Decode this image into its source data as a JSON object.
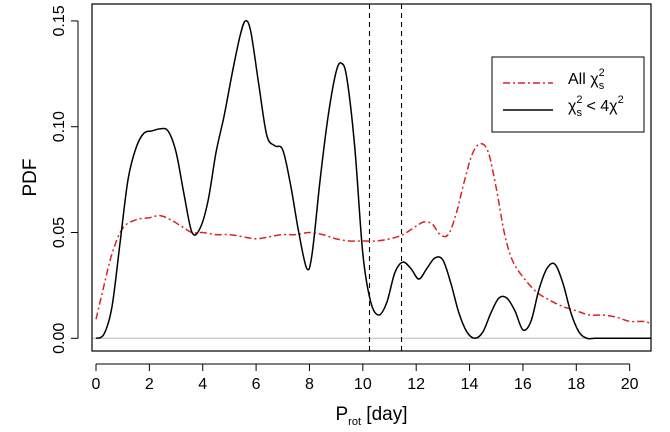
{
  "chart_data": {
    "type": "line",
    "xlabel": {
      "main": "P",
      "sub": "rot",
      "rest": " [day]"
    },
    "ylabel": "PDF",
    "xlim": [
      -0.15,
      20.8
    ],
    "ylim": [
      -0.006,
      0.158
    ],
    "x_ticks": [
      0,
      2,
      4,
      6,
      8,
      10,
      12,
      14,
      16,
      18,
      20
    ],
    "x_tick_labels": [
      "0",
      "2",
      "4",
      "6",
      "8",
      "10",
      "12",
      "14",
      "16",
      "18",
      "20"
    ],
    "y_ticks": [
      0.0,
      0.05,
      0.1,
      0.15
    ],
    "y_tick_labels": [
      "0.00",
      "0.05",
      "0.10",
      "0.15"
    ],
    "grid": false,
    "legend_position": "top-right",
    "vertical_lines": [
      10.25,
      11.45
    ],
    "zero_line": 0,
    "series": [
      {
        "name": "All χs²",
        "legend_parts": {
          "pre": "All χ",
          "sub": "s",
          "sup": "2",
          "post": ""
        },
        "color": "#dd2222",
        "dash": "dashdot",
        "x": [
          0,
          0.3,
          0.6,
          1.0,
          1.5,
          2.0,
          2.4,
          2.8,
          3.2,
          3.6,
          4.0,
          4.5,
          5.0,
          5.5,
          6.0,
          6.5,
          7.0,
          7.5,
          8.0,
          8.5,
          9.0,
          9.5,
          10.0,
          10.5,
          11.0,
          11.5,
          12.0,
          12.3,
          12.6,
          12.9,
          13.2,
          13.5,
          13.8,
          14.1,
          14.4,
          14.7,
          15.0,
          15.3,
          15.6,
          16.0,
          16.5,
          17.0,
          17.5,
          18.0,
          18.5,
          19.0,
          19.5,
          20.0,
          20.5,
          20.8
        ],
        "y": [
          0.009,
          0.025,
          0.04,
          0.052,
          0.056,
          0.057,
          0.058,
          0.056,
          0.053,
          0.05,
          0.05,
          0.049,
          0.049,
          0.048,
          0.047,
          0.048,
          0.049,
          0.049,
          0.05,
          0.049,
          0.047,
          0.046,
          0.046,
          0.046,
          0.047,
          0.049,
          0.053,
          0.055,
          0.054,
          0.049,
          0.049,
          0.059,
          0.074,
          0.087,
          0.092,
          0.088,
          0.071,
          0.05,
          0.037,
          0.029,
          0.022,
          0.018,
          0.015,
          0.013,
          0.011,
          0.011,
          0.01,
          0.008,
          0.008,
          0.007
        ]
      },
      {
        "name": "χs² < 4χ²",
        "legend_parts": {
          "pre": "χ",
          "sub": "s",
          "sup": "2",
          "post": " < 4χ",
          "sup2": "2"
        },
        "color": "#000000",
        "dash": "solid",
        "x": [
          0,
          0.3,
          0.6,
          0.9,
          1.2,
          1.5,
          1.8,
          2.1,
          2.4,
          2.7,
          3.0,
          3.3,
          3.6,
          3.9,
          4.2,
          4.5,
          4.8,
          5.1,
          5.4,
          5.6,
          5.8,
          6.1,
          6.4,
          6.7,
          7.0,
          7.3,
          7.6,
          7.9,
          8.1,
          8.4,
          8.7,
          9.0,
          9.2,
          9.4,
          9.7,
          10.0,
          10.3,
          10.6,
          10.9,
          11.2,
          11.5,
          11.8,
          12.1,
          12.4,
          12.7,
          13.0,
          13.3,
          13.6,
          13.9,
          14.2,
          14.5,
          14.8,
          15.1,
          15.4,
          15.7,
          16.0,
          16.3,
          16.6,
          16.9,
          17.2,
          17.5,
          17.8,
          18.1,
          18.4,
          18.7,
          19.0,
          19.5,
          20.0,
          20.8
        ],
        "y": [
          0.0,
          0.002,
          0.015,
          0.045,
          0.075,
          0.09,
          0.097,
          0.098,
          0.099,
          0.098,
          0.088,
          0.068,
          0.05,
          0.052,
          0.065,
          0.088,
          0.105,
          0.125,
          0.143,
          0.15,
          0.145,
          0.12,
          0.096,
          0.091,
          0.089,
          0.072,
          0.05,
          0.033,
          0.04,
          0.075,
          0.105,
          0.126,
          0.13,
          0.123,
          0.09,
          0.04,
          0.017,
          0.011,
          0.017,
          0.031,
          0.036,
          0.033,
          0.028,
          0.033,
          0.038,
          0.037,
          0.026,
          0.012,
          0.003,
          0.0,
          0.003,
          0.012,
          0.019,
          0.019,
          0.013,
          0.004,
          0.008,
          0.023,
          0.033,
          0.035,
          0.026,
          0.012,
          0.003,
          0.0,
          0.0,
          0.0,
          0.0,
          0.0,
          0.0
        ]
      }
    ]
  }
}
